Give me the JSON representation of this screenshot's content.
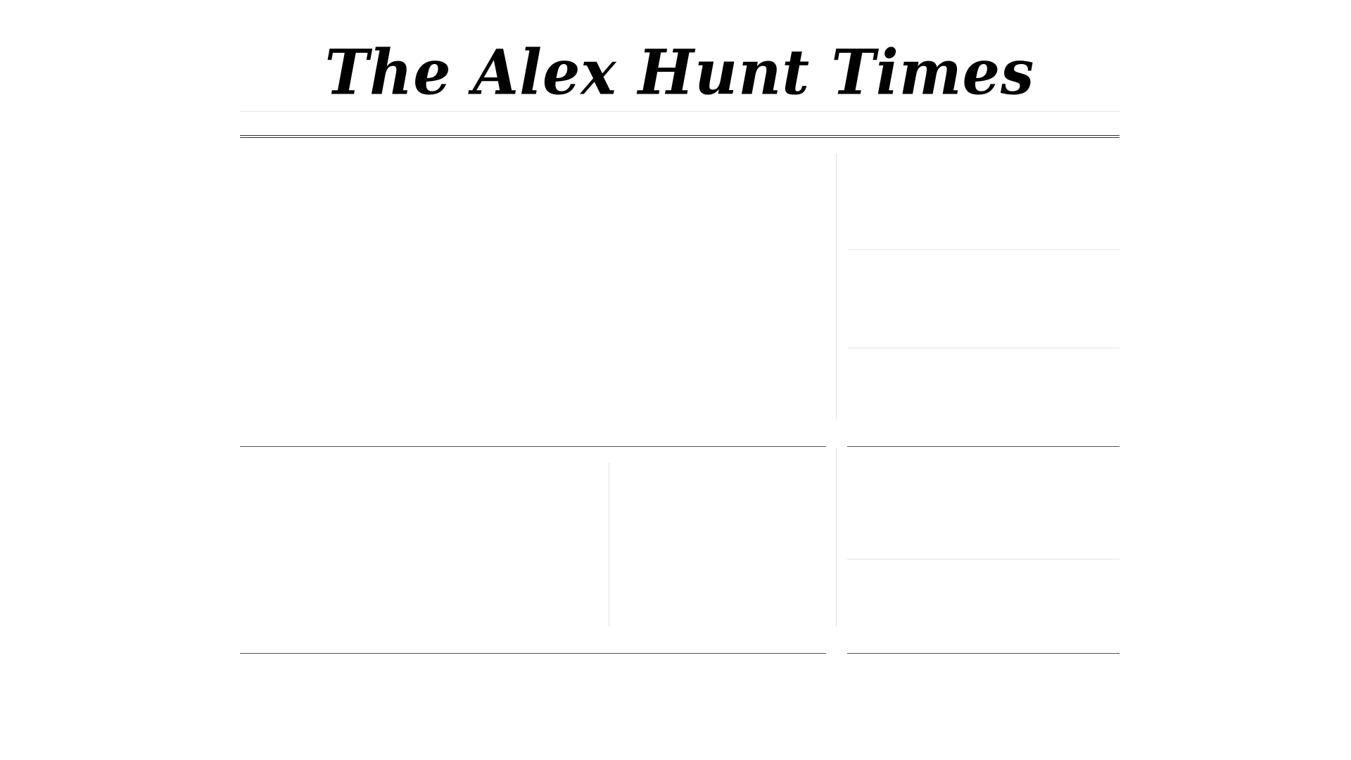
{
  "masthead": {
    "title": "The Alex Hunt Times"
  },
  "colors": {
    "background": "#ffffff",
    "text": "#000000",
    "rule_dark": "#333333",
    "rule_light": "#e4e4e4"
  }
}
